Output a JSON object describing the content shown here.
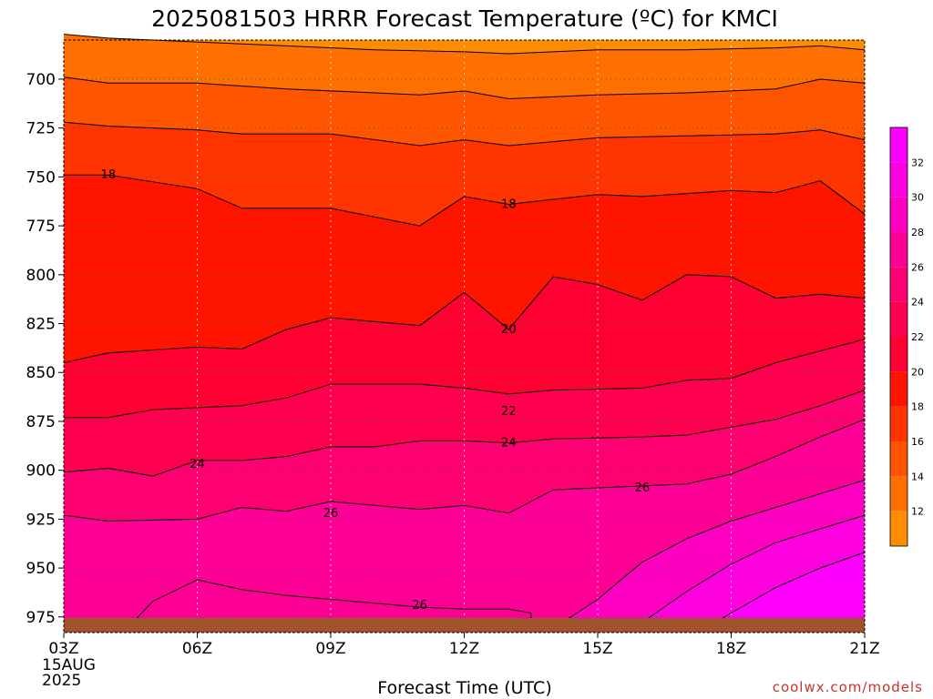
{
  "chart_data": {
    "type": "heatmap",
    "title": "2025081503 HRRR Forecast Temperature (ºC) for KMCI",
    "xlabel": "Forecast Time (UTC)",
    "ylabel": "",
    "x_ticks": [
      "03Z",
      "06Z",
      "09Z",
      "12Z",
      "15Z",
      "18Z",
      "21Z"
    ],
    "x_start_date": [
      "15AUG",
      "2025"
    ],
    "x_range_hours": [
      3,
      21
    ],
    "y_ticks": [
      700,
      725,
      750,
      775,
      800,
      825,
      850,
      875,
      900,
      925,
      950,
      975
    ],
    "y_range_hpa": [
      680,
      983
    ],
    "y_inverted": true,
    "grid": true,
    "colorbar": {
      "levels": [
        12,
        14,
        16,
        18,
        20,
        22,
        24,
        26,
        28,
        30,
        32
      ],
      "labels": [
        "12",
        "14",
        "16",
        "18",
        "20",
        "22",
        "24",
        "26",
        "28",
        "30",
        "32"
      ],
      "colors": [
        "#ff8c00",
        "#ff7000",
        "#ff5400",
        "#ff3400",
        "#ff1400",
        "#ff0032",
        "#ff0050",
        "#ff0073",
        "#ff0096",
        "#ff00c3",
        "#ff00e1",
        "#ff00ff"
      ]
    },
    "contour_labels": [
      {
        "value": "18",
        "x_hour": 4.0,
        "p_hpa": 749
      },
      {
        "value": "18",
        "x_hour": 13.0,
        "p_hpa": 764
      },
      {
        "value": "20",
        "x_hour": 13.0,
        "p_hpa": 828
      },
      {
        "value": "22",
        "x_hour": 13.0,
        "p_hpa": 870
      },
      {
        "value": "24",
        "x_hour": 6.0,
        "p_hpa": 897
      },
      {
        "value": "24",
        "x_hour": 13.0,
        "p_hpa": 886
      },
      {
        "value": "26",
        "x_hour": 9.0,
        "p_hpa": 922
      },
      {
        "value": "26",
        "x_hour": 16.0,
        "p_hpa": 909
      },
      {
        "value": "26",
        "x_hour": 11.0,
        "p_hpa": 969
      }
    ],
    "contours": [
      {
        "level": 12,
        "points": [
          [
            3,
            677
          ],
          [
            4,
            679
          ],
          [
            6,
            681
          ],
          [
            8,
            683
          ],
          [
            10,
            685
          ],
          [
            12,
            686
          ],
          [
            13,
            687
          ],
          [
            15,
            685
          ],
          [
            17,
            685
          ],
          [
            19,
            684
          ],
          [
            20,
            683
          ],
          [
            21,
            685
          ]
        ]
      },
      {
        "level": 14,
        "points": [
          [
            3,
            699
          ],
          [
            4,
            702
          ],
          [
            6,
            702
          ],
          [
            8,
            705
          ],
          [
            10,
            707
          ],
          [
            11,
            708
          ],
          [
            12,
            706
          ],
          [
            13,
            710
          ],
          [
            15,
            708
          ],
          [
            17,
            707
          ],
          [
            19,
            705
          ],
          [
            20,
            700
          ],
          [
            21,
            702
          ]
        ]
      },
      {
        "level": 16,
        "points": [
          [
            3,
            722
          ],
          [
            4,
            724
          ],
          [
            6,
            726
          ],
          [
            7,
            728
          ],
          [
            9,
            728
          ],
          [
            11,
            734
          ],
          [
            12,
            731
          ],
          [
            13,
            734
          ],
          [
            15,
            730
          ],
          [
            17,
            729
          ],
          [
            19,
            728
          ],
          [
            20,
            726
          ],
          [
            21,
            731
          ]
        ]
      },
      {
        "level": 18,
        "points": [
          [
            3,
            749
          ],
          [
            4,
            749
          ],
          [
            6,
            756
          ],
          [
            7,
            766
          ],
          [
            9,
            766
          ],
          [
            11,
            775
          ],
          [
            12,
            760
          ],
          [
            13,
            764
          ],
          [
            15,
            759
          ],
          [
            16,
            760
          ],
          [
            18,
            757
          ],
          [
            19,
            758
          ],
          [
            20,
            752
          ],
          [
            21,
            769
          ]
        ]
      },
      {
        "level": 20,
        "points": [
          [
            3,
            845
          ],
          [
            4,
            840
          ],
          [
            6,
            837
          ],
          [
            7,
            838
          ],
          [
            8,
            828
          ],
          [
            9,
            822
          ],
          [
            10,
            824
          ],
          [
            11,
            826
          ],
          [
            12,
            809
          ],
          [
            13,
            828
          ],
          [
            14,
            801
          ],
          [
            15,
            805
          ],
          [
            16,
            813
          ],
          [
            17,
            800
          ],
          [
            18,
            801
          ],
          [
            19,
            812
          ],
          [
            20,
            810
          ],
          [
            21,
            812
          ]
        ]
      },
      {
        "level": 22,
        "points": [
          [
            3,
            873
          ],
          [
            4,
            873
          ],
          [
            5,
            869
          ],
          [
            6,
            868
          ],
          [
            7,
            867
          ],
          [
            8,
            863
          ],
          [
            9,
            856
          ],
          [
            11,
            856
          ],
          [
            12,
            858
          ],
          [
            13,
            861
          ],
          [
            14,
            859
          ],
          [
            16,
            858
          ],
          [
            17,
            854
          ],
          [
            18,
            853
          ],
          [
            19,
            845
          ],
          [
            20,
            839
          ],
          [
            21,
            833
          ]
        ]
      },
      {
        "level": 24,
        "points": [
          [
            3,
            901
          ],
          [
            4,
            899
          ],
          [
            5,
            903
          ],
          [
            6,
            895
          ],
          [
            7,
            895
          ],
          [
            8,
            893
          ],
          [
            9,
            888
          ],
          [
            10,
            888
          ],
          [
            11,
            885
          ],
          [
            12,
            885
          ],
          [
            13,
            886
          ],
          [
            14,
            884
          ],
          [
            16,
            883
          ],
          [
            17,
            882
          ],
          [
            19,
            874
          ],
          [
            20,
            867
          ],
          [
            21,
            859
          ]
        ]
      },
      {
        "level": 26,
        "points": [
          [
            3,
            923
          ],
          [
            4,
            926
          ],
          [
            6,
            925
          ],
          [
            7,
            919
          ],
          [
            8,
            921
          ],
          [
            9,
            916
          ],
          [
            11,
            920
          ],
          [
            12,
            918
          ],
          [
            13,
            922
          ],
          [
            14,
            910
          ],
          [
            15,
            909
          ],
          [
            17,
            907
          ],
          [
            18,
            902
          ],
          [
            19,
            893
          ],
          [
            20,
            883
          ],
          [
            21,
            874
          ]
        ]
      },
      {
        "level": 28,
        "points": [
          [
            14,
            981
          ],
          [
            15,
            966
          ],
          [
            16,
            947
          ],
          [
            17,
            935
          ],
          [
            18,
            926
          ],
          [
            19,
            919
          ],
          [
            20,
            912
          ],
          [
            21,
            905
          ]
        ]
      },
      {
        "level": 30,
        "points": [
          [
            15.8,
            981
          ],
          [
            17,
            962
          ],
          [
            18,
            948
          ],
          [
            19,
            937
          ],
          [
            20,
            930
          ],
          [
            21,
            923
          ]
        ]
      },
      {
        "level": 32,
        "points": [
          [
            17.4,
            981
          ],
          [
            18,
            973
          ],
          [
            19,
            960
          ],
          [
            20,
            950
          ],
          [
            21,
            942
          ]
        ]
      },
      {
        "level": 26,
        "points": [
          [
            4.5,
            979
          ],
          [
            5,
            967
          ],
          [
            6,
            956
          ],
          [
            7,
            961
          ],
          [
            8,
            964
          ],
          [
            9,
            966
          ],
          [
            10,
            968
          ],
          [
            11,
            970
          ],
          [
            12,
            971
          ],
          [
            13,
            971
          ],
          [
            13.5,
            973
          ],
          [
            13.5,
            980
          ]
        ]
      }
    ],
    "ground_p_hpa": 979
  },
  "labels": {
    "title": "2025081503 HRRR Forecast Temperature (ºC) for KMCI",
    "xlabel": "Forecast Time (UTC)",
    "date_line1": "15AUG",
    "date_line2": "2025",
    "credit": "coolwx.com/models"
  }
}
